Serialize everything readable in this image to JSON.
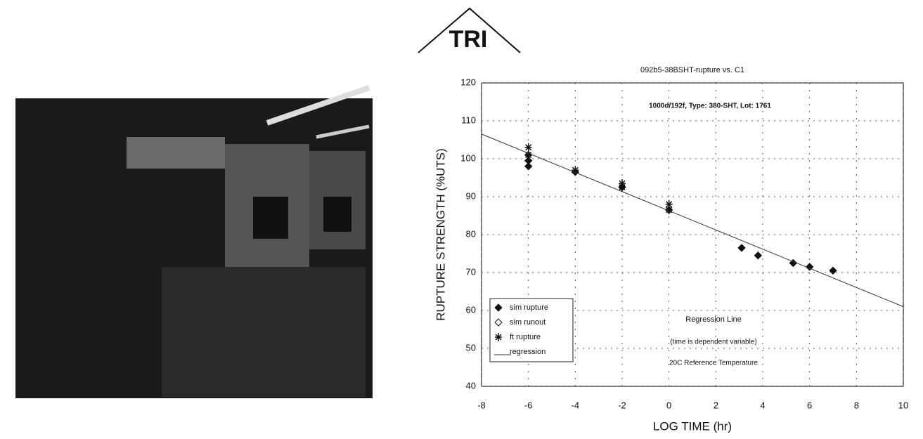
{
  "logo": "TRI",
  "chart_data": {
    "type": "scatter",
    "title": "092b5-38BSHT-rupture vs. C1",
    "subtitle": "1000d/192f, Type: 380-SHT, Lot: 1761",
    "x_label": "LOG TIME (hr)",
    "y_label": "RUPTURE STRENGTH (%UTS)",
    "annotations": [
      "Regression Line",
      "(time is dependent variable)",
      "20C Reference Temperature"
    ],
    "xlim": [
      -8,
      10
    ],
    "xticks": [
      -8,
      -6,
      -4,
      -2,
      0,
      2,
      4,
      6,
      8,
      10
    ],
    "ylim": [
      40,
      120
    ],
    "yticks": [
      40,
      50,
      60,
      70,
      80,
      90,
      100,
      110,
      120
    ],
    "grid": true,
    "legend": "lower left",
    "series": [
      {
        "name": "sim rupture",
        "color": "#111111",
        "marker": "diamond",
        "x": [
          -6,
          -6,
          -6,
          -4,
          -2,
          0,
          3.1,
          3.8,
          5.3,
          6,
          7
        ],
        "values": [
          98,
          99.5,
          101,
          96.5,
          92.5,
          86.5,
          76.5,
          74.5,
          72.5,
          71.5,
          70.5
        ]
      },
      {
        "name": "sim runout",
        "color": "#111111",
        "marker": "open-diamond",
        "x": [],
        "values": []
      },
      {
        "name": "ft rupture",
        "color": "#111111",
        "marker": "asterisk",
        "x": [
          -6,
          -6,
          -4,
          -2,
          -2,
          0,
          0
        ],
        "values": [
          103,
          101,
          97,
          93.5,
          92.5,
          88,
          86.5
        ]
      },
      {
        "name": "regression",
        "color": "#333333",
        "marker": "line",
        "x": [
          -8,
          10
        ],
        "values": [
          106.5,
          61
        ]
      }
    ]
  }
}
